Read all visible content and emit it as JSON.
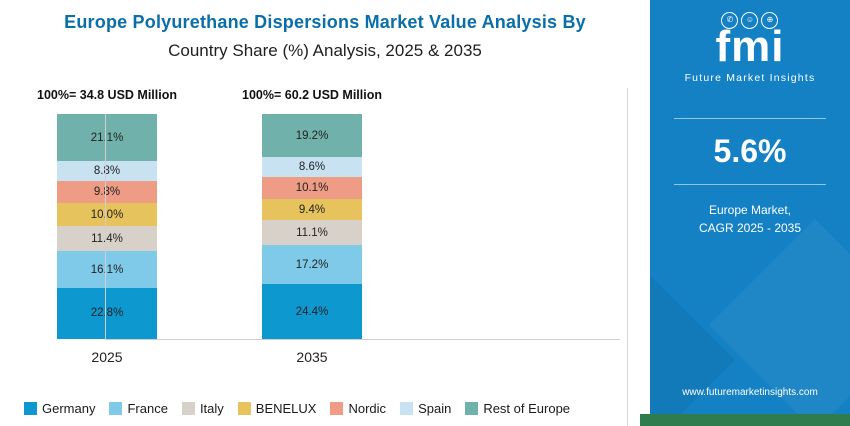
{
  "header": {
    "title_line1": "Europe Polyurethane Dispersions Market Value Analysis By",
    "title_line2": "Country Share (%) Analysis, 2025 & 2035"
  },
  "chart_data": {
    "type": "bar",
    "stacked": true,
    "categories": [
      "2025",
      "2035"
    ],
    "totals": [
      "100%= 34.8 USD Million",
      "100%= 60.2 USD Million"
    ],
    "ylim": [
      0,
      100
    ],
    "legend_position": "bottom",
    "series": [
      {
        "name": "Germany",
        "color": "#0d98d0",
        "values": [
          22.8,
          24.4
        ]
      },
      {
        "name": "France",
        "color": "#7fc9e9",
        "values": [
          16.1,
          17.2
        ]
      },
      {
        "name": "Italy",
        "color": "#d8d1c9",
        "values": [
          11.4,
          11.1
        ]
      },
      {
        "name": "BENELUX",
        "color": "#e7c35e",
        "values": [
          10.0,
          9.4
        ]
      },
      {
        "name": "Nordic",
        "color": "#ee9c85",
        "values": [
          9.8,
          10.1
        ]
      },
      {
        "name": "Spain",
        "color": "#c8e2f2",
        "values": [
          8.8,
          8.6
        ]
      },
      {
        "name": "Rest of Europe",
        "color": "#70b2ab",
        "values": [
          21.1,
          19.2
        ]
      }
    ],
    "stack_order_top_to_bottom": [
      "Rest of Europe",
      "Spain",
      "Nordic",
      "BENELUX",
      "Italy",
      "France",
      "Germany"
    ]
  },
  "sidebar": {
    "logo_text": "fmi",
    "logo_tagline": "Future Market Insights",
    "icons": [
      "phone-icon",
      "person-icon",
      "globe-icon"
    ],
    "stat_value": "5.6%",
    "stat_caption_line1": "Europe Market,",
    "stat_caption_line2": "CAGR 2025 - 2035",
    "website": "www.futuremarketinsights.com",
    "colors": {
      "background": "#1581c5",
      "accent_green": "#2f7d4e"
    }
  },
  "colors": {
    "title_blue": "#0a6fa9"
  }
}
